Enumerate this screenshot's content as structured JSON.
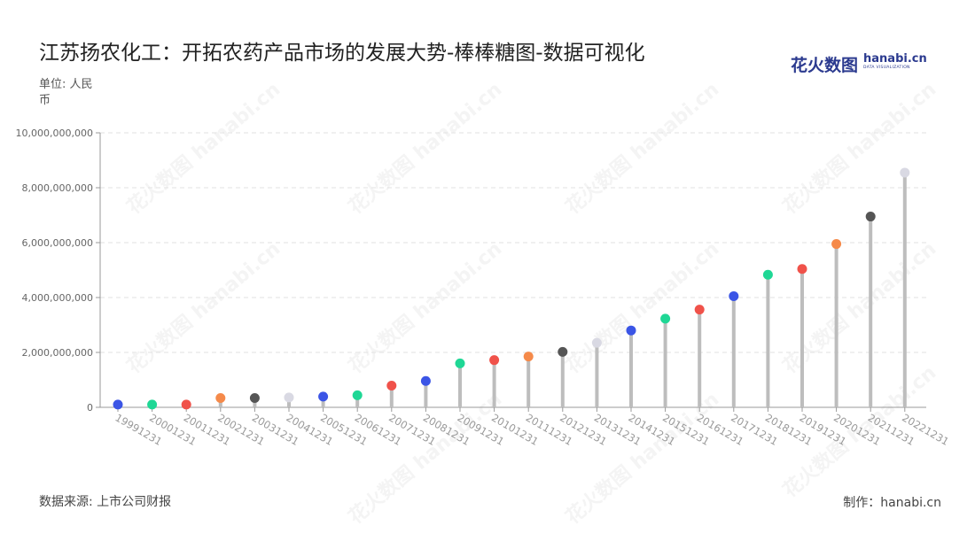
{
  "header": {
    "title": "江苏扬农化工：开拓农药产品市场的发展大势-棒棒糖图-数据可视化",
    "unit": "单位: 人民币"
  },
  "brand": {
    "cn": "花火数图",
    "en": "hanabi.cn",
    "sub": "DATA VISUALIZATION",
    "color": "#2b3a8f"
  },
  "footer": {
    "source": "数据来源: 上市公司财报",
    "credit": "制作：hanabi.cn"
  },
  "watermark_text": "花火数图 hanabi.cn",
  "chart_data": {
    "type": "lollipop",
    "title": "江苏扬农化工：开拓农药产品市场的发展大势-棒棒糖图-数据可视化",
    "ylabel": "单位: 人民币",
    "ylim": [
      0,
      10000000000
    ],
    "yticks": [
      0,
      2000000000,
      4000000000,
      6000000000,
      8000000000,
      10000000000
    ],
    "ytick_labels": [
      "0",
      "2,000,000,000",
      "4,000,000,000",
      "6,000,000,000",
      "8,000,000,000",
      "10,000,000,000"
    ],
    "grid": true,
    "stem_color": "#bdbdbd",
    "categories": [
      "19991231",
      "20001231",
      "20011231",
      "20021231",
      "20031231",
      "20041231",
      "20051231",
      "20061231",
      "20071231",
      "20081231",
      "20091231",
      "20101231",
      "20111231",
      "20121231",
      "20131231",
      "20141231",
      "20151231",
      "20161231",
      "20171231",
      "20181231",
      "20191231",
      "20201231",
      "20211231",
      "20221231"
    ],
    "values": [
      100000000,
      100000000,
      100000000,
      340000000,
      340000000,
      360000000,
      390000000,
      440000000,
      790000000,
      960000000,
      1600000000,
      1720000000,
      1850000000,
      2020000000,
      2350000000,
      2800000000,
      3230000000,
      3560000000,
      4050000000,
      4830000000,
      5040000000,
      5950000000,
      6950000000,
      8550000000
    ],
    "colors": [
      "#3b55e6",
      "#1fd795",
      "#f0524a",
      "#f58a4a",
      "#555555",
      "#d9d9e3",
      "#3b55e6",
      "#1fd795",
      "#f0524a",
      "#3b55e6",
      "#1fd795",
      "#f0524a",
      "#f58a4a",
      "#555555",
      "#d9d9e3",
      "#3b55e6",
      "#1fd795",
      "#f0524a",
      "#3b55e6",
      "#1fd795",
      "#f0524a",
      "#f58a4a",
      "#555555",
      "#d9d9e3"
    ]
  }
}
